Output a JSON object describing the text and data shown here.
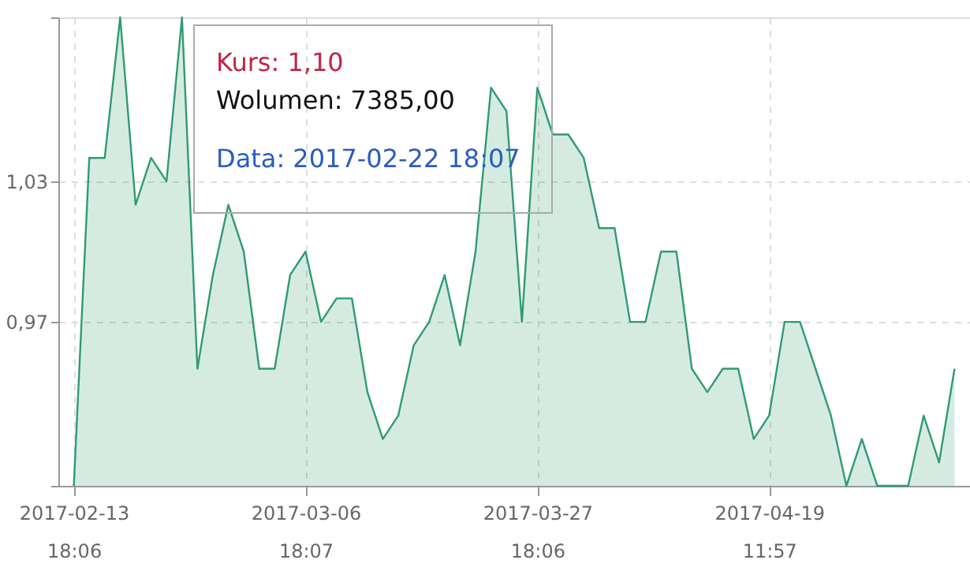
{
  "chart_data": {
    "type": "area",
    "categories": [
      "2017-02-13 18:06",
      null,
      null,
      null,
      null,
      null,
      null,
      null,
      null,
      null,
      null,
      null,
      null,
      null,
      null,
      "2017-03-06 18:07",
      null,
      null,
      null,
      null,
      null,
      null,
      null,
      null,
      null,
      null,
      null,
      null,
      null,
      null,
      "2017-03-27 18:06",
      null,
      null,
      null,
      null,
      null,
      null,
      null,
      null,
      null,
      null,
      null,
      null,
      null,
      null,
      "2017-04-19 11:57",
      null,
      null,
      null,
      null,
      null,
      null,
      null,
      null,
      null,
      null,
      null,
      null
    ],
    "series": [
      {
        "color": "#2f9c70",
        "values": [
          0.9,
          1.04,
          1.04,
          1.1,
          1.02,
          1.04,
          1.03,
          1.1,
          0.95,
          0.99,
          1.02,
          1.0,
          0.95,
          0.95,
          0.99,
          1.0,
          0.97,
          0.98,
          0.98,
          0.94,
          0.92,
          0.93,
          0.96,
          0.97,
          0.99,
          0.96,
          1.0,
          1.07,
          1.06,
          0.97,
          1.07,
          1.05,
          1.05,
          1.04,
          1.01,
          1.01,
          0.97,
          0.97,
          1.0,
          1.0,
          0.95,
          0.94,
          0.95,
          0.95,
          0.92,
          0.93,
          0.97,
          0.97,
          0.95,
          0.93,
          0.9,
          0.92,
          0.9,
          0.9,
          0.9,
          0.93,
          0.91,
          0.95
        ]
      }
    ],
    "ylim": [
      0.9,
      1.1
    ],
    "yticks": [
      {
        "value": 1.1,
        "label": null
      },
      {
        "value": 1.03,
        "label": "1,03"
      },
      {
        "value": 0.97,
        "label": "0,97"
      },
      {
        "value": 0.9,
        "label": null
      }
    ],
    "grid": true,
    "annotations": [
      "Kurs: 1,10",
      "Wolumen: 7385,00",
      "Data: 2017-02-22 18:07"
    ]
  }
}
